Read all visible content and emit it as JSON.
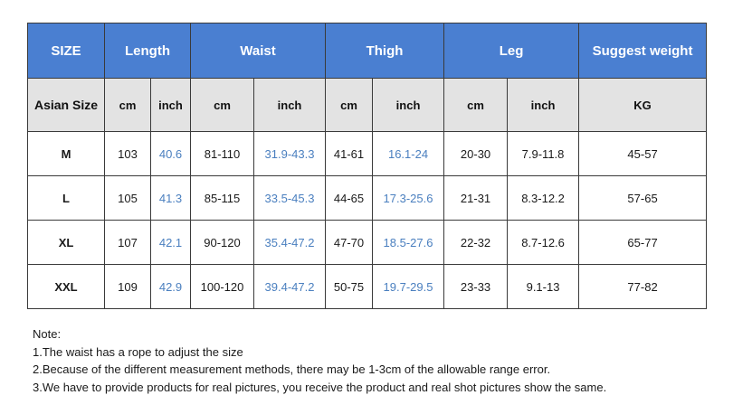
{
  "header": {
    "groups": [
      "SIZE",
      "Length",
      "Waist",
      "Thigh",
      "Leg",
      "Suggest weight"
    ]
  },
  "subheader": {
    "first": "Asian Size",
    "units": [
      "cm",
      "inch",
      "cm",
      "inch",
      "cm",
      "inch",
      "cm",
      "inch",
      "KG"
    ]
  },
  "rows": [
    {
      "size": "M",
      "length_cm": "103",
      "length_in": "40.6",
      "waist_cm": "81-110",
      "waist_in": "31.9-43.3",
      "thigh_cm": "41-61",
      "thigh_in": "16.1-24",
      "leg_cm": "20-30",
      "leg_in": "7.9-11.8",
      "weight": "45-57"
    },
    {
      "size": "L",
      "length_cm": "105",
      "length_in": "41.3",
      "waist_cm": "85-115",
      "waist_in": "33.5-45.3",
      "thigh_cm": "44-65",
      "thigh_in": "17.3-25.6",
      "leg_cm": "21-31",
      "leg_in": "8.3-12.2",
      "weight": "57-65"
    },
    {
      "size": "XL",
      "length_cm": "107",
      "length_in": "42.1",
      "waist_cm": "90-120",
      "waist_in": "35.4-47.2",
      "thigh_cm": "47-70",
      "thigh_in": "18.5-27.6",
      "leg_cm": "22-32",
      "leg_in": "8.7-12.6",
      "weight": "65-77"
    },
    {
      "size": "XXL",
      "length_cm": "109",
      "length_in": "42.9",
      "waist_cm": "100-120",
      "waist_in": "39.4-47.2",
      "thigh_cm": "50-75",
      "thigh_in": "19.7-29.5",
      "leg_cm": "23-33",
      "leg_in": "9.1-13",
      "weight": "77-82"
    }
  ],
  "notes": [
    "Note:",
    "1.The waist has a rope to adjust the size",
    "2.Because of the different measurement methods, there may be 1-3cm of the allowable range error.",
    "3.We have to provide products for real pictures, you receive the product and real shot pictures show the same."
  ],
  "colors": {
    "header_blue": "#4a7fd1",
    "subheader_gray": "#e3e3e3",
    "inch_text_blue": "#4a7fbf"
  }
}
